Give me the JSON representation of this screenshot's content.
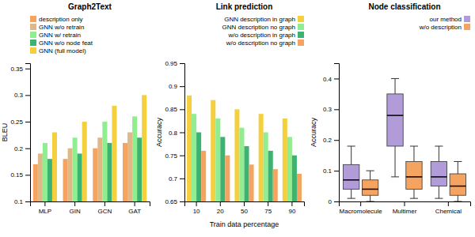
{
  "chart_data": [
    {
      "type": "bar",
      "title": "Graph2Text",
      "ylabel": "BLEU",
      "categories": [
        "MLP",
        "GIN",
        "GCN",
        "GAT"
      ],
      "series": [
        {
          "name": "description only",
          "color": "#f4a460",
          "values": [
            0.17,
            0.18,
            0.2,
            0.21
          ]
        },
        {
          "name": "GNN w/o retrain",
          "color": "#deb887",
          "values": [
            0.19,
            0.2,
            0.22,
            0.23
          ]
        },
        {
          "name": "GNN w/ retrain",
          "color": "#90ee90",
          "values": [
            0.21,
            0.22,
            0.25,
            0.26
          ]
        },
        {
          "name": "GNN w/o node feat",
          "color": "#3cb371",
          "values": [
            0.18,
            0.19,
            0.21,
            0.22
          ]
        },
        {
          "name": "GNN (full model)",
          "color": "#f4d03f",
          "values": [
            0.23,
            0.25,
            0.28,
            0.3
          ]
        }
      ],
      "ylim": [
        0.1,
        0.36
      ],
      "yticks": [
        0.1,
        0.15,
        0.2,
        0.25,
        0.3,
        0.35
      ],
      "grid": false,
      "legend": "upper left"
    },
    {
      "type": "bar",
      "title": "Link prediction",
      "ylabel": "Accuracy",
      "xlabel": "Train data percentage",
      "categories": [
        "10",
        "20",
        "50",
        "75",
        "90"
      ],
      "series": [
        {
          "name": "GNN description in graph",
          "color": "#f4d03f",
          "values": [
            0.88,
            0.87,
            0.85,
            0.84,
            0.83
          ]
        },
        {
          "name": "GNN description no graph",
          "color": "#90ee90",
          "values": [
            0.84,
            0.83,
            0.81,
            0.8,
            0.79
          ]
        },
        {
          "name": "w/o description in graph",
          "color": "#3cb371",
          "values": [
            0.8,
            0.79,
            0.77,
            0.76,
            0.75
          ]
        },
        {
          "name": "w/o description no graph",
          "color": "#f4a460",
          "values": [
            0.76,
            0.75,
            0.73,
            0.72,
            0.71
          ]
        }
      ],
      "ylim": [
        0.65,
        0.95
      ],
      "yticks": [
        0.65,
        0.7,
        0.75,
        0.8,
        0.85,
        0.9,
        0.95
      ],
      "grid": false,
      "legend": "upper right"
    },
    {
      "type": "box",
      "title": "Node classification",
      "ylabel": "Accuracy",
      "categories": [
        "Macromolecule",
        "Multimer",
        "Chemical"
      ],
      "series": [
        {
          "name": "our method",
          "color": "#b19cd9",
          "values": [
            {
              "med": 0.07,
              "q1": 0.04,
              "q3": 0.12,
              "lo": 0.01,
              "hi": 0.18
            },
            {
              "med": 0.28,
              "q1": 0.18,
              "q3": 0.35,
              "lo": 0.08,
              "hi": 0.4
            },
            {
              "med": 0.08,
              "q1": 0.05,
              "q3": 0.13,
              "lo": 0.01,
              "hi": 0.18
            }
          ]
        },
        {
          "name": "w/o description",
          "color": "#f4a460",
          "values": [
            {
              "med": 0.04,
              "q1": 0.02,
              "q3": 0.07,
              "lo": 0.0,
              "hi": 0.1
            },
            {
              "med": 0.08,
              "q1": 0.04,
              "q3": 0.13,
              "lo": 0.01,
              "hi": 0.18
            },
            {
              "med": 0.05,
              "q1": 0.02,
              "q3": 0.09,
              "lo": 0.0,
              "hi": 0.13
            }
          ]
        }
      ],
      "ylim": [
        0.0,
        0.45
      ],
      "yticks": [
        0,
        0.1,
        0.2,
        0.3,
        0.4
      ],
      "grid": false,
      "legend": "upper right"
    }
  ]
}
